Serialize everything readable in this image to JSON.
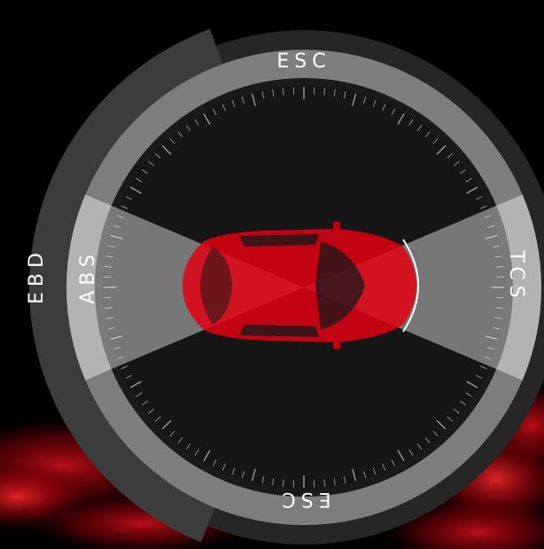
{
  "labels": {
    "top": "ESC",
    "bottom": "ESC",
    "left": "ABS",
    "right": "TCS",
    "outer": "EBD"
  },
  "colors": {
    "background": "#000000",
    "outer_ring": "#2b2b2b",
    "ebd_arc": "#3c3c3c",
    "mid_ring": "#7f7f7f",
    "dial_face": "#161616",
    "beam": "#ffffff",
    "car_body": "#e10010",
    "car_glass": "#1a1a1a"
  }
}
